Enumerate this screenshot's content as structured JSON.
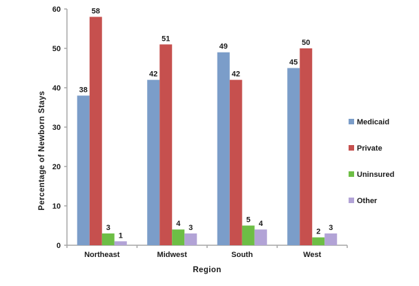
{
  "chart_data": {
    "type": "bar",
    "title": "",
    "xlabel": "Region",
    "ylabel": "Percentage of Newborn Stays",
    "categories": [
      "Northeast",
      "Midwest",
      "South",
      "West"
    ],
    "series": [
      {
        "name": "Medicaid",
        "color": "#7B9DC9",
        "values": [
          38,
          42,
          49,
          45
        ]
      },
      {
        "name": "Private",
        "color": "#C6504E",
        "values": [
          58,
          51,
          42,
          50
        ]
      },
      {
        "name": "Uninsured",
        "color": "#6DBE45",
        "values": [
          3,
          4,
          5,
          2
        ]
      },
      {
        "name": "Other",
        "color": "#B2A3D6",
        "values": [
          1,
          3,
          4,
          3
        ]
      }
    ],
    "ylim": [
      0,
      60
    ],
    "yticks": [
      0,
      10,
      20,
      30,
      40,
      50,
      60
    ],
    "grid": false,
    "data_labels": true,
    "legend_position": "right",
    "axis_color": "#A6A6A6",
    "text_color": "#1A1A1A",
    "background_color": "#FFFFFF"
  }
}
